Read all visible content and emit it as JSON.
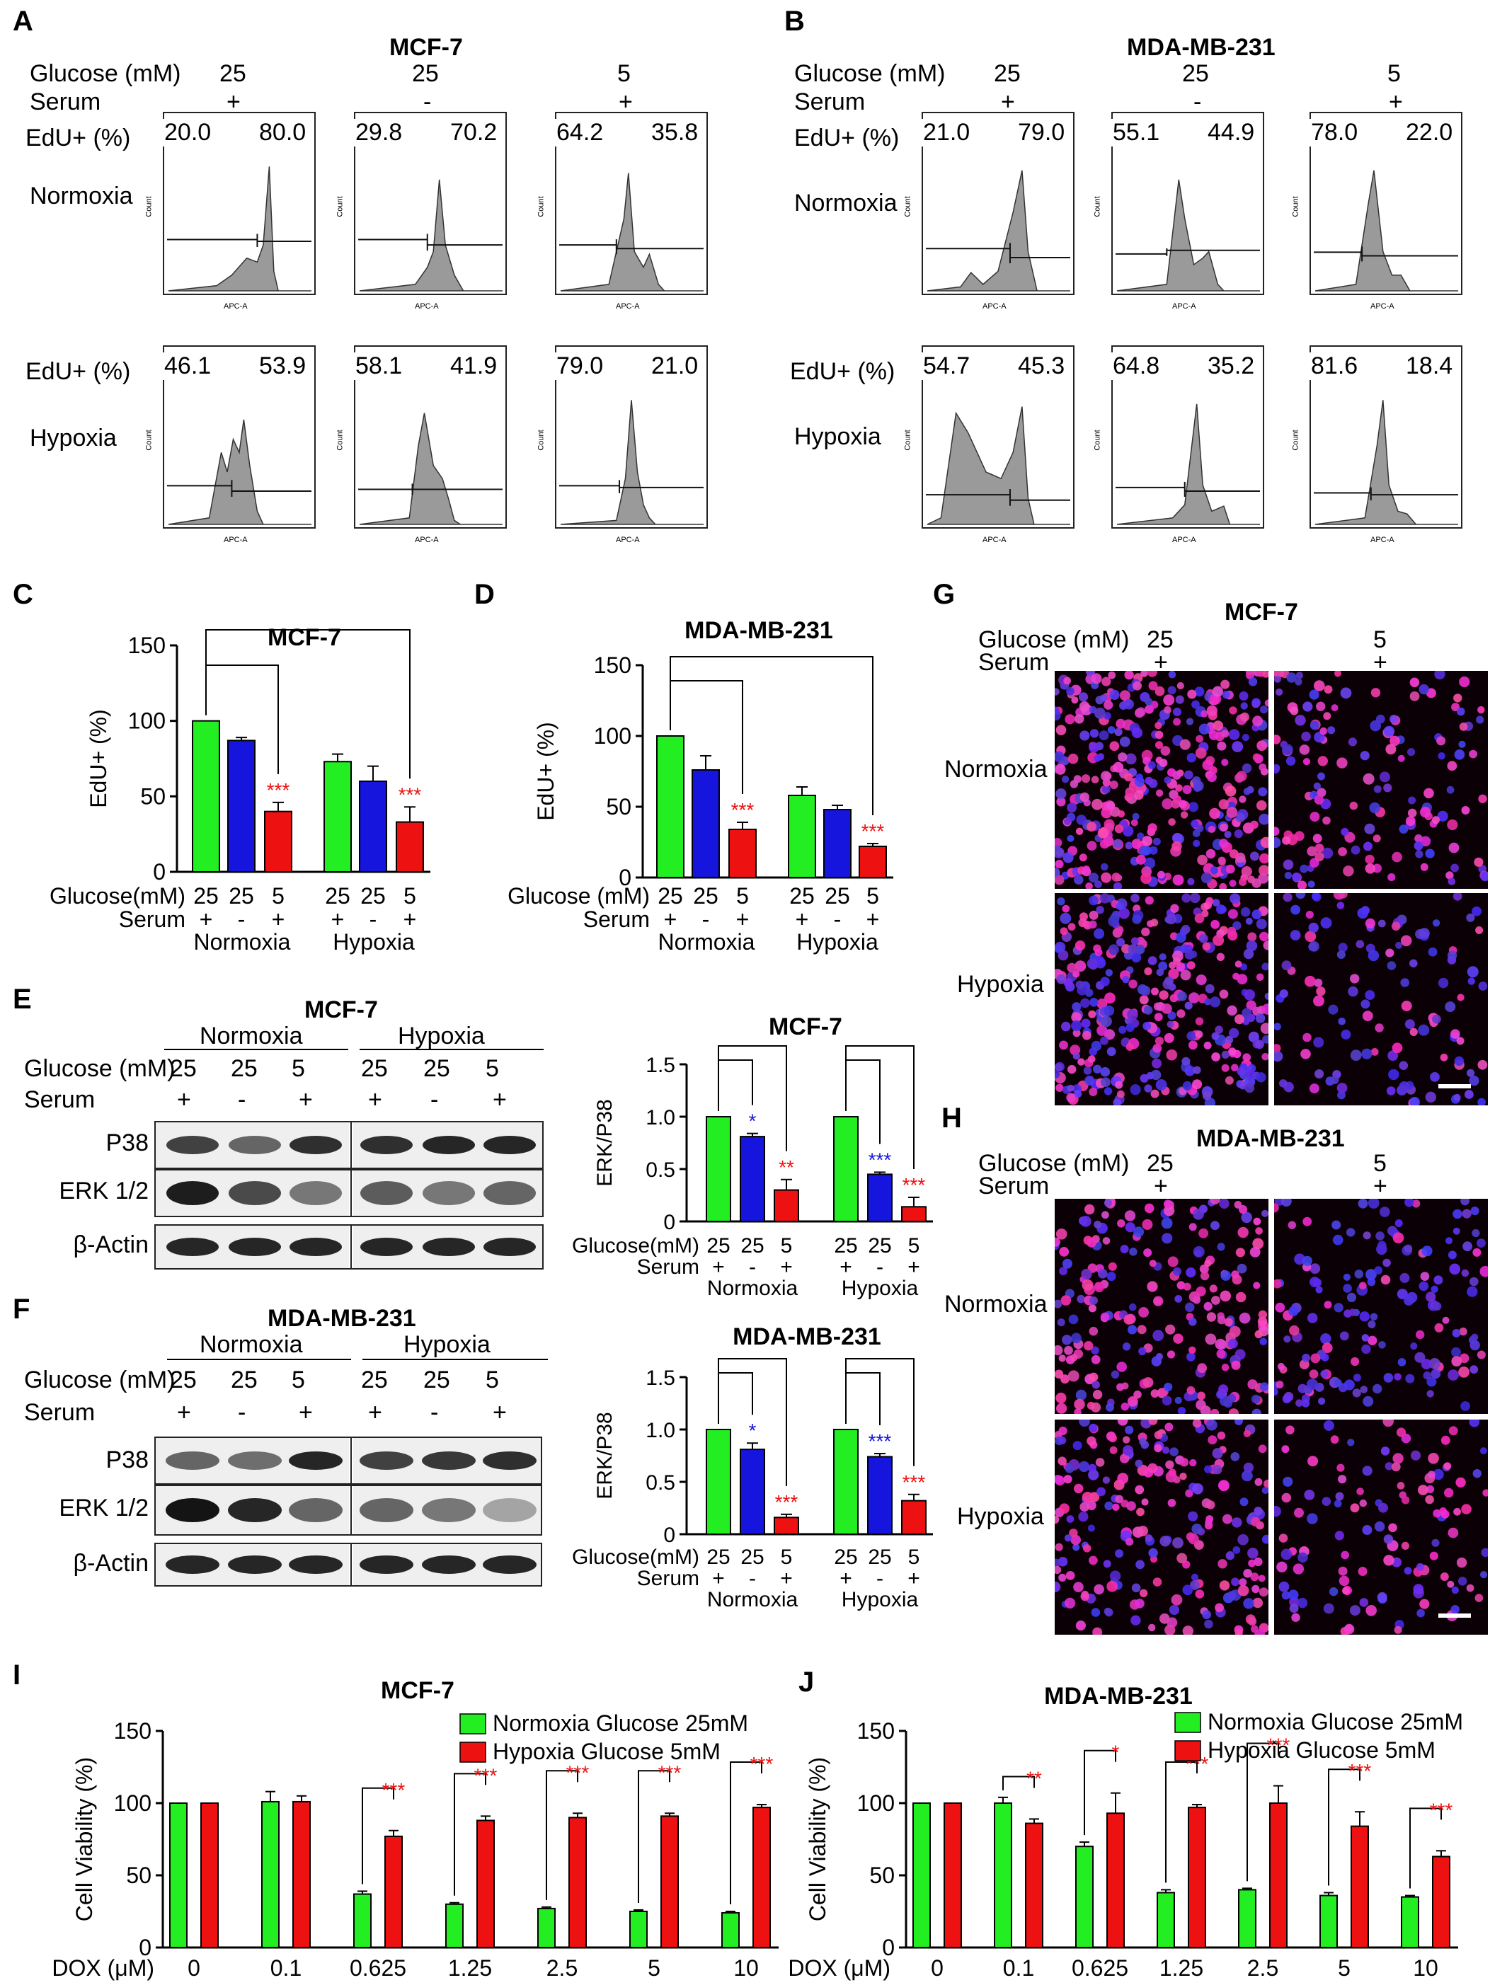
{
  "panels": [
    "A",
    "B",
    "C",
    "D",
    "E",
    "F",
    "G",
    "H",
    "I",
    "J"
  ],
  "flow": {
    "A": {
      "title": "MCF-7",
      "glucose_label": "Glucose (mM)",
      "serum_label": "Serum",
      "glucose": [
        "25",
        "25",
        "5"
      ],
      "serum": [
        "+",
        "-",
        "+"
      ],
      "edu_label": "EdU+ (%)",
      "rows": [
        "Normoxia",
        "Hypoxia"
      ],
      "values": [
        [
          [
            "20.0",
            "80.0"
          ],
          [
            "29.8",
            "70.2"
          ],
          [
            "64.2",
            "35.8"
          ]
        ],
        [
          [
            "46.1",
            "53.9"
          ],
          [
            "58.1",
            "41.9"
          ],
          [
            "79.0",
            "21.0"
          ]
        ]
      ],
      "axis_x": "APC-A",
      "axis_y": "Count"
    },
    "B": {
      "title": "MDA-MB-231",
      "glucose_label": "Glucose (mM)",
      "serum_label": "Serum",
      "glucose": [
        "25",
        "25",
        "5"
      ],
      "serum": [
        "+",
        "-",
        "+"
      ],
      "edu_label": "EdU+ (%)",
      "rows": [
        "Normoxia",
        "Hypoxia"
      ],
      "values": [
        [
          [
            "21.0",
            "79.0"
          ],
          [
            "55.1",
            "44.9"
          ],
          [
            "78.0",
            "22.0"
          ]
        ],
        [
          [
            "54.7",
            "45.3"
          ],
          [
            "64.8",
            "35.2"
          ],
          [
            "81.6",
            "18.4"
          ]
        ]
      ],
      "axis_x": "APC-A",
      "axis_y": "Count"
    }
  },
  "blots": {
    "E": {
      "title": "MCF-7",
      "conditions": [
        "Normoxia",
        "Hypoxia"
      ],
      "glucose_label": "Glucose (mM)",
      "serum_label": "Serum",
      "glucose": [
        "25",
        "25",
        "5",
        "25",
        "25",
        "5"
      ],
      "serum": [
        "+",
        "-",
        "+",
        "+",
        "-",
        "+"
      ],
      "proteins": [
        "P38",
        "ERK 1/2",
        "β-Actin"
      ]
    },
    "F": {
      "title": "MDA-MB-231",
      "conditions": [
        "Normoxia",
        "Hypoxia"
      ],
      "glucose_label": "Glucose (mM)",
      "serum_label": "Serum",
      "glucose": [
        "25",
        "25",
        "5",
        "25",
        "25",
        "5"
      ],
      "serum": [
        "+",
        "-",
        "+",
        "+",
        "-",
        "+"
      ],
      "proteins": [
        "P38",
        "ERK 1/2",
        "β-Actin"
      ]
    }
  },
  "micro": {
    "G": {
      "title": "MCF-7",
      "glucose_label": "Glucose (mM)",
      "serum_label": "Serum",
      "glucose": [
        "25",
        "5"
      ],
      "serum": [
        "+",
        "+"
      ],
      "rows": [
        "Normoxia",
        "Hypoxia"
      ]
    },
    "H": {
      "title": "MDA-MB-231",
      "glucose_label": "Glucose (mM)",
      "serum_label": "Serum",
      "glucose": [
        "25",
        "5"
      ],
      "serum": [
        "+",
        "+"
      ],
      "rows": [
        "Normoxia",
        "Hypoxia"
      ]
    }
  },
  "colors": {
    "green": "#22ee22",
    "blue": "#1515dd",
    "red": "#ee1111",
    "gray_fill": "#9a9a9a",
    "sig_blue": "#1515dd",
    "sig_red": "#ee1111"
  },
  "chart_data": [
    {
      "panel": "C",
      "type": "bar",
      "title": "MCF-7",
      "ylabel": "EdU+ (%)",
      "ylim": [
        0,
        150
      ],
      "yticks": [
        "0",
        "50",
        "100",
        "150"
      ],
      "x_label_rows": [
        "Glucose(mM)",
        "Serum"
      ],
      "categories": [
        "25",
        "25",
        "5",
        "25",
        "25",
        "5"
      ],
      "serum": [
        "+",
        "-",
        "+",
        "+",
        "-",
        "+"
      ],
      "groups": [
        "Normoxia",
        "Hypoxia"
      ],
      "values": [
        100,
        87,
        40,
        73,
        60,
        33
      ],
      "errors": [
        0,
        2,
        6,
        5,
        10,
        10
      ],
      "colors": [
        "green",
        "blue",
        "red",
        "green",
        "blue",
        "red"
      ],
      "significance": [
        "",
        "",
        "***",
        "",
        "",
        "***"
      ],
      "sig_colors": [
        "",
        "",
        "red",
        "",
        "",
        "red"
      ],
      "brackets": [
        [
          0,
          2,
          0
        ],
        [
          0,
          5,
          1
        ]
      ]
    },
    {
      "panel": "D",
      "type": "bar",
      "title": "MDA-MB-231",
      "ylabel": "EdU+ (%)",
      "ylim": [
        0,
        150
      ],
      "yticks": [
        "0",
        "50",
        "100",
        "150"
      ],
      "x_label_rows": [
        "Glucose (mM)",
        "Serum"
      ],
      "categories": [
        "25",
        "25",
        "5",
        "25",
        "25",
        "5"
      ],
      "serum": [
        "+",
        "-",
        "+",
        "+",
        "-",
        "+"
      ],
      "groups": [
        "Normoxia",
        "Hypoxia"
      ],
      "values": [
        100,
        76,
        34,
        58,
        48,
        22
      ],
      "errors": [
        0,
        10,
        5,
        6,
        3,
        2
      ],
      "colors": [
        "green",
        "blue",
        "red",
        "green",
        "blue",
        "red"
      ],
      "significance": [
        "",
        "",
        "***",
        "",
        "",
        "***"
      ],
      "sig_colors": [
        "",
        "",
        "red",
        "",
        "",
        "red"
      ],
      "brackets": [
        [
          0,
          2,
          0
        ],
        [
          0,
          5,
          1
        ]
      ]
    },
    {
      "panel": "E",
      "type": "bar",
      "title": "MCF-7",
      "ylabel": "ERK/P38",
      "ylim": [
        0,
        1.5
      ],
      "yticks": [
        "0",
        "0.5",
        "1.0",
        "1.5"
      ],
      "x_label_rows": [
        "Glucose(mM)",
        "Serum"
      ],
      "categories": [
        "25",
        "25",
        "5",
        "25",
        "25",
        "5"
      ],
      "serum": [
        "+",
        "-",
        "+",
        "+",
        "-",
        "+"
      ],
      "groups": [
        "Normoxia",
        "Hypoxia"
      ],
      "values": [
        1.0,
        0.81,
        0.3,
        1.0,
        0.45,
        0.14
      ],
      "errors": [
        0,
        0.03,
        0.1,
        0,
        0.02,
        0.09
      ],
      "colors": [
        "green",
        "blue",
        "red",
        "green",
        "blue",
        "red"
      ],
      "significance": [
        "",
        "*",
        "**",
        "",
        "***",
        "***"
      ],
      "sig_colors": [
        "",
        "blue",
        "red",
        "",
        "blue",
        "red"
      ],
      "brackets": [
        [
          0,
          1,
          0
        ],
        [
          0,
          2,
          1
        ],
        [
          3,
          4,
          0
        ],
        [
          3,
          5,
          1
        ]
      ]
    },
    {
      "panel": "F",
      "type": "bar",
      "title": "MDA-MB-231",
      "ylabel": "ERK/P38",
      "ylim": [
        0,
        1.5
      ],
      "yticks": [
        "0",
        "0.5",
        "1.0",
        "1.5"
      ],
      "x_label_rows": [
        "Glucose(mM)",
        "Serum"
      ],
      "categories": [
        "25",
        "25",
        "5",
        "25",
        "25",
        "5"
      ],
      "serum": [
        "+",
        "-",
        "+",
        "+",
        "-",
        "+"
      ],
      "groups": [
        "Normoxia",
        "Hypoxia"
      ],
      "values": [
        1.0,
        0.81,
        0.16,
        1.0,
        0.74,
        0.32
      ],
      "errors": [
        0,
        0.06,
        0.03,
        0,
        0.03,
        0.06
      ],
      "colors": [
        "green",
        "blue",
        "red",
        "green",
        "blue",
        "red"
      ],
      "significance": [
        "",
        "*",
        "***",
        "",
        "***",
        "***"
      ],
      "sig_colors": [
        "",
        "blue",
        "red",
        "",
        "blue",
        "red"
      ],
      "brackets": [
        [
          0,
          1,
          0
        ],
        [
          0,
          2,
          1
        ],
        [
          3,
          4,
          0
        ],
        [
          3,
          5,
          1
        ]
      ]
    },
    {
      "panel": "I",
      "type": "bar",
      "title": "MCF-7",
      "ylabel": "Cell Viability (%)",
      "ylim": [
        0,
        150
      ],
      "yticks": [
        "0",
        "50",
        "100",
        "150"
      ],
      "xlabel": "DOX (μM)",
      "categories": [
        "0",
        "0.1",
        "0.625",
        "1.25",
        "2.5",
        "5",
        "10"
      ],
      "series": [
        {
          "name": "Normoxia Glucose 25mM",
          "color": "green",
          "values": [
            100,
            101,
            37,
            30,
            27,
            25,
            24
          ],
          "errors": [
            0,
            7,
            2,
            1,
            1,
            1,
            1
          ]
        },
        {
          "name": "Hypoxia Glucose 5mM",
          "color": "red",
          "values": [
            100,
            101,
            77,
            88,
            90,
            91,
            97
          ],
          "errors": [
            0,
            4,
            4,
            3,
            3,
            2,
            2
          ]
        }
      ],
      "significance": [
        "",
        "",
        "***",
        "***",
        "***",
        "***",
        "***"
      ]
    },
    {
      "panel": "J",
      "type": "bar",
      "title": "MDA-MB-231",
      "ylabel": "Cell Viability (%)",
      "ylim": [
        0,
        150
      ],
      "yticks": [
        "0",
        "50",
        "100",
        "150"
      ],
      "xlabel": "DOX (μM)",
      "categories": [
        "0",
        "0.1",
        "0.625",
        "1.25",
        "2.5",
        "5",
        "10"
      ],
      "series": [
        {
          "name": "Normoxia Glucose 25mM",
          "color": "green",
          "values": [
            100,
            100,
            70,
            38,
            40,
            36,
            35
          ],
          "errors": [
            0,
            4,
            3,
            2,
            1,
            2,
            1
          ]
        },
        {
          "name": "Hypoxia Glucose 5mM",
          "color": "red",
          "values": [
            100,
            86,
            93,
            97,
            100,
            84,
            63
          ],
          "errors": [
            0,
            3,
            14,
            2,
            12,
            10,
            4
          ]
        }
      ],
      "significance": [
        "",
        "**",
        "*",
        "***",
        "***",
        "***",
        "***"
      ]
    }
  ]
}
